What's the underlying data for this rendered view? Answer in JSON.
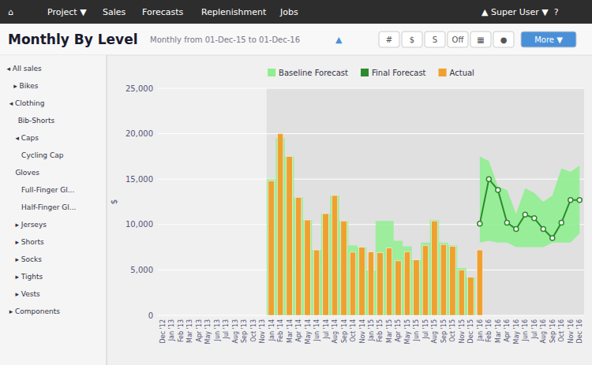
{
  "chart_data": {
    "type": "bar",
    "title": "Monthly By Level",
    "subtitle": "Monthly from 01-Dec-15 to 01-Dec-16",
    "y_label": "$",
    "annotations": [
      [
        "⌂",
        "Project ▼",
        "Sales",
        "Forecasts",
        "Replenishment",
        "Jobs",
        "▲ Super User ▼  ?"
      ],
      [
        "◂ All sales",
        "▸ Bikes",
        "◂ Clothing",
        "Bib-Shorts",
        "◂ Caps",
        "Cycling Cap",
        "Gloves",
        "Full-Finger Gl...",
        "Half-Finger Gl...",
        "▸ Jerseys",
        "▸ Shorts",
        "▸ Socks",
        "▸ Tights",
        "▸ Vests",
        "▸ Components"
      ],
      [
        "▲",
        "#",
        "$",
        "S",
        "Off",
        "▦",
        "●",
        "More ▼"
      ]
    ],
    "categories": [
      "Dec\n'12",
      "Jan\n'13",
      "Feb\n'13",
      "Mar\n'13",
      "Apr\n'13",
      "May\n'13",
      "Jun\n'13",
      "Jul\n'13",
      "Aug\n'13",
      "Sep\n'13",
      "Oct\n'13",
      "Nov\n'13",
      "Jan\n'14",
      "Feb\n'14",
      "Mar\n'14",
      "Apr\n'14",
      "May\n'14",
      "Jun\n'14",
      "Jul\n'14",
      "Aug\n'14",
      "Sep\n'14",
      "Oct\n'14",
      "Nov\n'14",
      "Jan\n'15",
      "Feb\n'15",
      "Mar\n'15",
      "Apr\n'15",
      "May\n'15",
      "Jun\n'15",
      "Jul\n'15",
      "Aug\n'15",
      "Sep\n'15",
      "Oct\n'15",
      "Nov\n'15",
      "Dec\n'15",
      "Jan\n'16",
      "Feb\n'16",
      "Mar\n'16",
      "Apr\n'16",
      "May\n'16",
      "Jun\n'16",
      "Jul\n'16",
      "Aug\n'16",
      "Sep\n'16",
      "Oct\n'16",
      "Nov\n'16",
      "Dec\n'16"
    ],
    "series": [
      {
        "name": "Baseline Forecast",
        "type": "area",
        "color": "#90ee90",
        "values": [
          null,
          null,
          null,
          null,
          null,
          null,
          null,
          null,
          null,
          null,
          null,
          null,
          15000,
          19500,
          17500,
          13000,
          10500,
          7200,
          11200,
          13200,
          10400,
          7700,
          7500,
          5000,
          10400,
          10400,
          8200,
          7600,
          6100,
          8000,
          10500,
          8000,
          7700,
          5200,
          4200,
          null,
          null,
          null,
          null,
          null,
          null,
          null,
          null,
          null,
          null,
          null,
          null
        ],
        "upper": [
          null,
          null,
          null,
          null,
          null,
          null,
          null,
          null,
          null,
          null,
          null,
          null,
          null,
          null,
          null,
          null,
          null,
          null,
          null,
          null,
          null,
          null,
          null,
          null,
          null,
          null,
          null,
          null,
          null,
          null,
          null,
          null,
          null,
          null,
          null,
          17500,
          17000,
          14200,
          13800,
          11200,
          14000,
          13500,
          12500,
          13200,
          16200,
          15800,
          16500
        ],
        "lower": [
          null,
          null,
          null,
          null,
          null,
          null,
          null,
          null,
          null,
          null,
          null,
          null,
          null,
          null,
          null,
          null,
          null,
          null,
          null,
          null,
          null,
          null,
          null,
          null,
          null,
          null,
          null,
          null,
          null,
          null,
          null,
          null,
          null,
          null,
          null,
          8000,
          8200,
          8000,
          8000,
          7500,
          7500,
          7500,
          7500,
          8000,
          8000,
          8000,
          9000
        ]
      },
      {
        "name": "Final Forecast",
        "type": "line",
        "color": "#2d8a2d",
        "marker": "circle",
        "values": [
          null,
          null,
          null,
          null,
          null,
          null,
          null,
          null,
          null,
          null,
          null,
          null,
          null,
          null,
          null,
          null,
          null,
          null,
          null,
          null,
          null,
          null,
          null,
          null,
          null,
          null,
          null,
          null,
          null,
          null,
          null,
          null,
          null,
          null,
          null,
          10100,
          15000,
          13800,
          10200,
          9500,
          11100,
          10700,
          9500,
          8500,
          10200,
          12700,
          12700
        ]
      },
      {
        "name": "Actual",
        "type": "bar",
        "color": "#f0a030",
        "values": [
          null,
          null,
          null,
          null,
          null,
          null,
          null,
          null,
          null,
          null,
          null,
          null,
          14800,
          20000,
          17500,
          13000,
          10500,
          7200,
          11200,
          13200,
          10400,
          6950,
          7500,
          7000,
          6900,
          7400,
          6000,
          7000,
          6100,
          7700,
          10400,
          7800,
          7600,
          5000,
          4200,
          7200,
          null,
          null,
          null,
          null,
          null,
          null,
          null,
          null,
          null,
          null,
          null
        ]
      }
    ],
    "ylim": [
      0,
      25000
    ],
    "yticks": [
      0,
      {
        "value": 5000,
        "label": "5,000"
      },
      {
        "value": 10000,
        "label": "10,000"
      },
      {
        "value": 15000,
        "label": "15,000"
      },
      {
        "value": 20000,
        "label": "20,000"
      },
      {
        "value": 25000,
        "label": "25,000"
      }
    ],
    "grid": true,
    "legend": "top"
  }
}
